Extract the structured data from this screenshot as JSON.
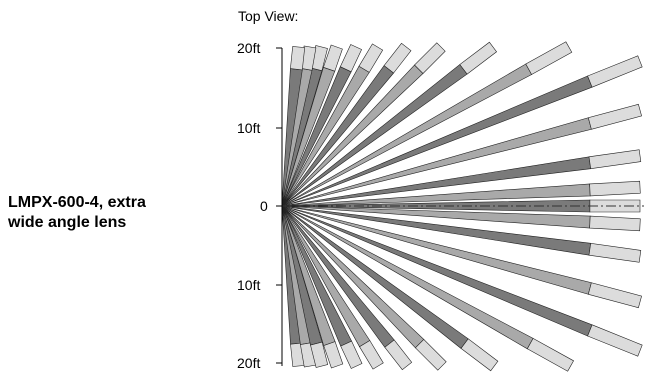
{
  "figure": {
    "view_title": "Top View:",
    "lens_label": [
      "LMPX-600-4, extra",
      "wide angle lens"
    ]
  },
  "axis": {
    "labels": [
      "20ft",
      "10ft",
      "0",
      "10ft",
      "20ft"
    ],
    "values_ft": [
      20,
      10,
      0,
      -10,
      -20
    ]
  },
  "beams": {
    "angles_deg": [
      -84,
      -80,
      -76,
      -71,
      -65,
      -59,
      -52,
      -45,
      -37,
      -29,
      -22,
      -15,
      -8,
      -3,
      0,
      3,
      8,
      15,
      22,
      29,
      37,
      45,
      52,
      59,
      65,
      71,
      76,
      80,
      84
    ],
    "colors": {
      "dark": "#7a7a7a",
      "mid": "#a9a9a9",
      "light": "#dcdcdc",
      "outline": "#222222"
    }
  }
}
